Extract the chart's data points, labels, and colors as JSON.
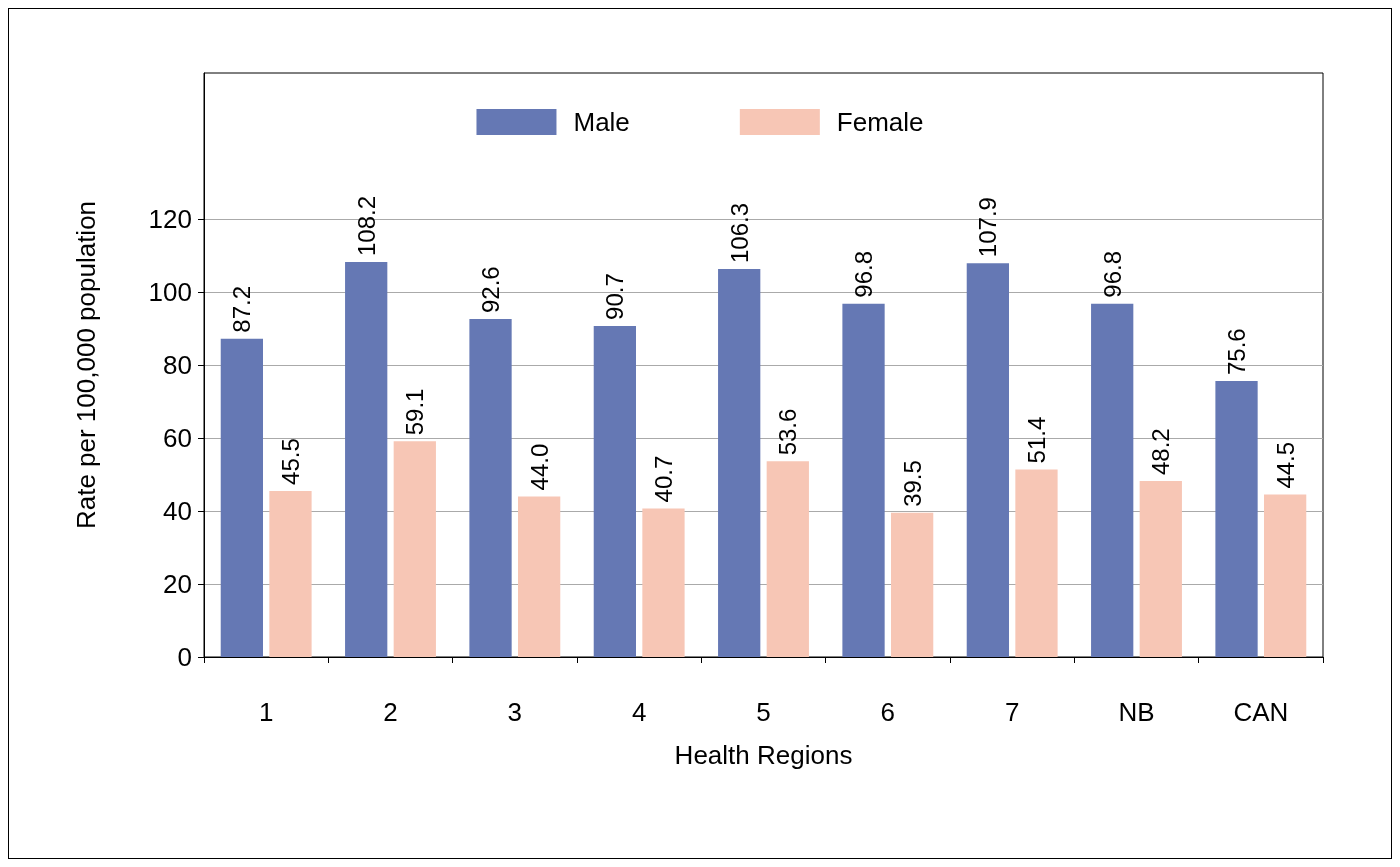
{
  "chart_data": {
    "type": "bar",
    "xlabel": "Health Regions",
    "ylabel": "Rate per 100,000 population",
    "categories": [
      "1",
      "2",
      "3",
      "4",
      "5",
      "6",
      "7",
      "NB",
      "CAN"
    ],
    "series": [
      {
        "name": "Male",
        "color": "#6578b4",
        "values": [
          87.2,
          108.2,
          92.6,
          90.7,
          106.3,
          96.8,
          107.9,
          96.8,
          75.6
        ],
        "value_labels": [
          "87.2",
          "108.2",
          "92.6",
          "90.7",
          "106.3",
          "96.8",
          "107.9",
          "96.8",
          "75.6"
        ]
      },
      {
        "name": "Female",
        "color": "#f7c6b5",
        "values": [
          45.5,
          59.1,
          44.0,
          40.7,
          53.6,
          39.5,
          51.4,
          48.2,
          44.5
        ],
        "value_labels": [
          "45.5",
          "59.1",
          "44.0",
          "40.7",
          "53.6",
          "39.5",
          "51.4",
          "48.2",
          "44.5"
        ]
      }
    ],
    "ylim": [
      0,
      160
    ],
    "yticks": [
      0,
      20,
      40,
      60,
      80,
      100,
      120
    ],
    "grid": "y",
    "legend": "top"
  }
}
